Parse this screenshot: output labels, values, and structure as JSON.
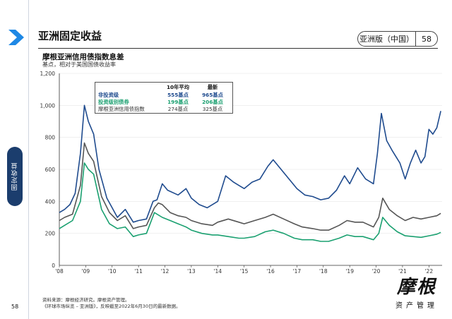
{
  "header": {
    "title": "亚洲固定收益",
    "edition": "亚洲版（中国）",
    "page_number": "58",
    "side_tab": "固定收益"
  },
  "chart_data": {
    "type": "line",
    "title": "摩根亚洲信用债指数息差",
    "subtitle": "基点，相对于美国国债收益率",
    "ylim": [
      0,
      1200
    ],
    "yticks": [
      "0",
      "200",
      "400",
      "600",
      "800",
      "1,000",
      "1,200"
    ],
    "xlim": [
      2008.0,
      2022.5
    ],
    "xticks": [
      "'08",
      "'09",
      "'10",
      "'11",
      "'12",
      "'13",
      "'14",
      "'15",
      "'16",
      "'17",
      "'18",
      "'19",
      "'20",
      "'21",
      "'22"
    ],
    "series": [
      {
        "name": "非投资级",
        "color": "#1f4b8e",
        "avg_10y": "555基点",
        "latest": "965基点",
        "points": [
          [
            2008.0,
            330
          ],
          [
            2008.2,
            350
          ],
          [
            2008.4,
            380
          ],
          [
            2008.6,
            450
          ],
          [
            2008.8,
            700
          ],
          [
            2008.95,
            1000
          ],
          [
            2009.1,
            900
          ],
          [
            2009.3,
            820
          ],
          [
            2009.5,
            600
          ],
          [
            2009.8,
            420
          ],
          [
            2010.0,
            360
          ],
          [
            2010.2,
            300
          ],
          [
            2010.5,
            350
          ],
          [
            2010.8,
            270
          ],
          [
            2011.0,
            280
          ],
          [
            2011.3,
            290
          ],
          [
            2011.55,
            400
          ],
          [
            2011.7,
            410
          ],
          [
            2011.9,
            510
          ],
          [
            2012.1,
            470
          ],
          [
            2012.5,
            440
          ],
          [
            2012.8,
            480
          ],
          [
            2013.0,
            420
          ],
          [
            2013.3,
            380
          ],
          [
            2013.6,
            360
          ],
          [
            2014.0,
            400
          ],
          [
            2014.3,
            560
          ],
          [
            2014.6,
            520
          ],
          [
            2014.8,
            500
          ],
          [
            2015.0,
            480
          ],
          [
            2015.3,
            520
          ],
          [
            2015.6,
            540
          ],
          [
            2015.9,
            620
          ],
          [
            2016.1,
            660
          ],
          [
            2016.4,
            600
          ],
          [
            2016.7,
            540
          ],
          [
            2017.0,
            480
          ],
          [
            2017.3,
            440
          ],
          [
            2017.6,
            430
          ],
          [
            2017.9,
            410
          ],
          [
            2018.2,
            420
          ],
          [
            2018.5,
            470
          ],
          [
            2018.8,
            560
          ],
          [
            2019.0,
            510
          ],
          [
            2019.3,
            610
          ],
          [
            2019.6,
            540
          ],
          [
            2019.9,
            510
          ],
          [
            2020.05,
            700
          ],
          [
            2020.2,
            950
          ],
          [
            2020.4,
            780
          ],
          [
            2020.6,
            720
          ],
          [
            2020.9,
            640
          ],
          [
            2021.1,
            540
          ],
          [
            2021.3,
            640
          ],
          [
            2021.5,
            720
          ],
          [
            2021.7,
            640
          ],
          [
            2021.85,
            680
          ],
          [
            2022.0,
            850
          ],
          [
            2022.15,
            820
          ],
          [
            2022.3,
            860
          ],
          [
            2022.45,
            965
          ]
        ]
      },
      {
        "name": "投资级别债券",
        "color": "#1aa070",
        "avg_10y": "199基点",
        "latest": "206基点",
        "points": [
          [
            2008.0,
            230
          ],
          [
            2008.2,
            250
          ],
          [
            2008.5,
            280
          ],
          [
            2008.8,
            400
          ],
          [
            2008.95,
            640
          ],
          [
            2009.1,
            600
          ],
          [
            2009.3,
            570
          ],
          [
            2009.6,
            350
          ],
          [
            2009.9,
            260
          ],
          [
            2010.2,
            230
          ],
          [
            2010.5,
            240
          ],
          [
            2010.8,
            180
          ],
          [
            2011.0,
            190
          ],
          [
            2011.3,
            200
          ],
          [
            2011.6,
            330
          ],
          [
            2011.9,
            300
          ],
          [
            2012.2,
            280
          ],
          [
            2012.5,
            260
          ],
          [
            2012.8,
            240
          ],
          [
            2013.0,
            220
          ],
          [
            2013.4,
            200
          ],
          [
            2013.8,
            190
          ],
          [
            2014.0,
            190
          ],
          [
            2014.4,
            180
          ],
          [
            2014.8,
            170
          ],
          [
            2015.0,
            170
          ],
          [
            2015.4,
            180
          ],
          [
            2015.8,
            210
          ],
          [
            2016.1,
            220
          ],
          [
            2016.5,
            200
          ],
          [
            2016.9,
            170
          ],
          [
            2017.2,
            160
          ],
          [
            2017.6,
            160
          ],
          [
            2017.9,
            150
          ],
          [
            2018.2,
            150
          ],
          [
            2018.6,
            170
          ],
          [
            2018.9,
            190
          ],
          [
            2019.2,
            180
          ],
          [
            2019.5,
            180
          ],
          [
            2019.9,
            160
          ],
          [
            2020.1,
            200
          ],
          [
            2020.25,
            300
          ],
          [
            2020.5,
            250
          ],
          [
            2020.8,
            210
          ],
          [
            2021.1,
            185
          ],
          [
            2021.4,
            180
          ],
          [
            2021.7,
            175
          ],
          [
            2022.0,
            185
          ],
          [
            2022.3,
            195
          ],
          [
            2022.45,
            206
          ]
        ]
      },
      {
        "name": "摩根亚洲信用债指数",
        "color": "#555555",
        "avg_10y": "274基点",
        "latest": "325基点",
        "points": [
          [
            2008.0,
            280
          ],
          [
            2008.2,
            300
          ],
          [
            2008.5,
            320
          ],
          [
            2008.8,
            500
          ],
          [
            2008.95,
            765
          ],
          [
            2009.1,
            700
          ],
          [
            2009.3,
            650
          ],
          [
            2009.6,
            430
          ],
          [
            2009.9,
            330
          ],
          [
            2010.2,
            280
          ],
          [
            2010.5,
            310
          ],
          [
            2010.8,
            230
          ],
          [
            2011.0,
            240
          ],
          [
            2011.3,
            250
          ],
          [
            2011.6,
            360
          ],
          [
            2011.75,
            390
          ],
          [
            2011.9,
            380
          ],
          [
            2012.2,
            330
          ],
          [
            2012.5,
            310
          ],
          [
            2012.8,
            300
          ],
          [
            2013.0,
            280
          ],
          [
            2013.4,
            260
          ],
          [
            2013.8,
            250
          ],
          [
            2014.0,
            270
          ],
          [
            2014.4,
            290
          ],
          [
            2014.8,
            270
          ],
          [
            2015.0,
            260
          ],
          [
            2015.4,
            280
          ],
          [
            2015.8,
            300
          ],
          [
            2016.1,
            320
          ],
          [
            2016.5,
            290
          ],
          [
            2016.9,
            260
          ],
          [
            2017.2,
            240
          ],
          [
            2017.6,
            230
          ],
          [
            2017.9,
            220
          ],
          [
            2018.2,
            220
          ],
          [
            2018.6,
            250
          ],
          [
            2018.9,
            280
          ],
          [
            2019.2,
            270
          ],
          [
            2019.5,
            270
          ],
          [
            2019.9,
            240
          ],
          [
            2020.1,
            300
          ],
          [
            2020.25,
            420
          ],
          [
            2020.5,
            350
          ],
          [
            2020.8,
            310
          ],
          [
            2021.1,
            280
          ],
          [
            2021.4,
            300
          ],
          [
            2021.7,
            290
          ],
          [
            2022.0,
            300
          ],
          [
            2022.3,
            310
          ],
          [
            2022.45,
            325
          ]
        ]
      }
    ]
  },
  "legend_table": {
    "col_avg": "10年平均",
    "col_latest": "最新"
  },
  "source": {
    "line1": "资料来源：摩根经济研究。摩根资产管理。",
    "line2": "《环球市场纵览 – 亚洲版》，反映截至2022年6月30日的最新数据。"
  },
  "brand": {
    "calligraphy": "摩根",
    "subtitle": "资产管理"
  }
}
